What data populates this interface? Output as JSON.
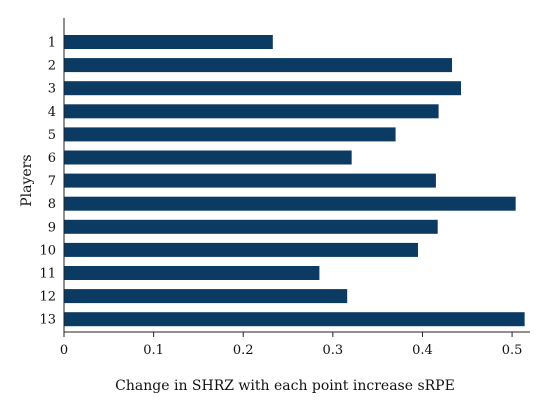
{
  "chart_data": {
    "type": "bar",
    "orientation": "horizontal",
    "categories": [
      "1",
      "2",
      "3",
      "4",
      "5",
      "6",
      "7",
      "8",
      "9",
      "10",
      "11",
      "12",
      "13"
    ],
    "values": [
      0.233,
      0.433,
      0.443,
      0.418,
      0.37,
      0.321,
      0.415,
      0.504,
      0.417,
      0.395,
      0.285,
      0.316,
      0.514
    ],
    "xlabel": "Change in SHRZ with each point increase sRPE",
    "ylabel": "Players",
    "xlim": [
      0,
      0.52
    ],
    "xticks": [
      "0",
      "0.1",
      "0.2",
      "0.3",
      "0.4",
      "0.5"
    ],
    "grid": false,
    "colors": {
      "bar": "#0b3a63"
    }
  }
}
